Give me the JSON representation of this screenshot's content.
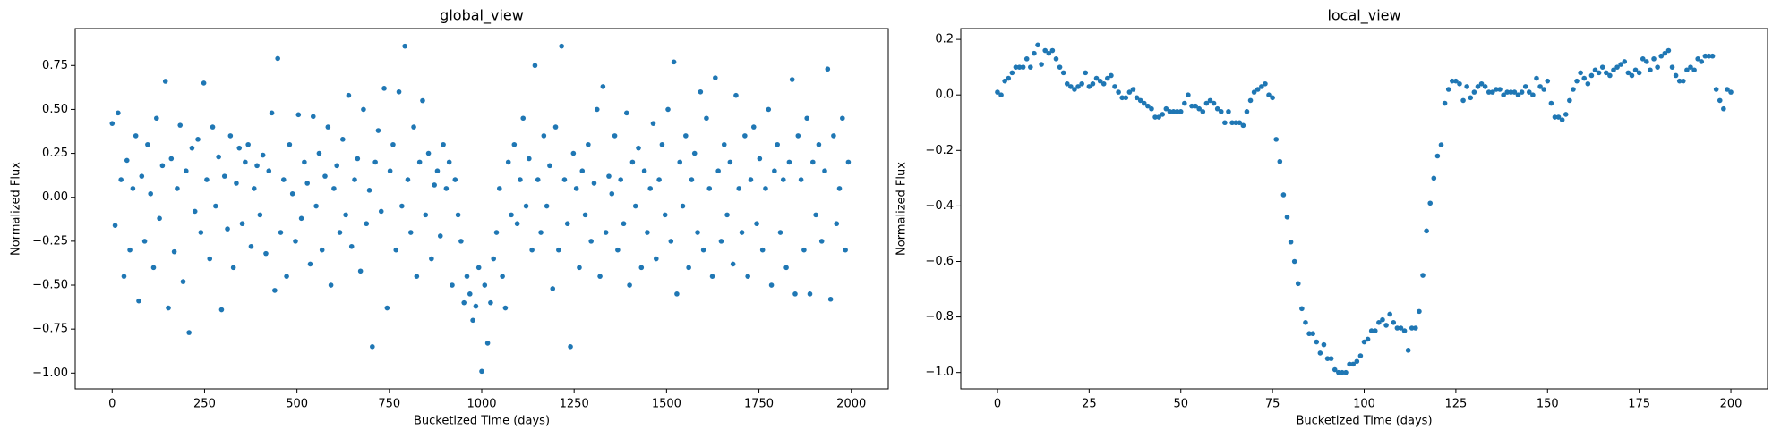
{
  "chart_data": [
    {
      "type": "scatter",
      "title": "global_view",
      "x_label": "Bucketized Time (days)",
      "y_label": "Normalized Flux",
      "color": "#1f77b4",
      "xlim": [
        -100,
        2100
      ],
      "ylim": [
        -1.09,
        0.96
      ],
      "xticks": [
        0,
        250,
        500,
        750,
        1000,
        1250,
        1500,
        1750,
        2000
      ],
      "yticks": [
        {
          "value": -1,
          "label": "−1.00"
        },
        {
          "value": -0.75,
          "label": "−0.75"
        },
        {
          "value": -0.5,
          "label": "−0.50"
        },
        {
          "value": -0.25,
          "label": "−0.25"
        },
        {
          "value": 0,
          "label": "0.00"
        },
        {
          "value": 0.25,
          "label": "0.25"
        },
        {
          "value": 0.5,
          "label": "0.50"
        },
        {
          "value": 0.75,
          "label": "0.75"
        }
      ],
      "x": [
        0,
        8,
        16,
        24,
        32,
        40,
        48,
        56,
        64,
        72,
        80,
        88,
        96,
        104,
        112,
        120,
        128,
        136,
        144,
        152,
        160,
        168,
        176,
        184,
        192,
        200,
        208,
        216,
        224,
        232,
        240,
        248,
        256,
        264,
        272,
        280,
        288,
        296,
        304,
        312,
        320,
        328,
        336,
        344,
        352,
        360,
        368,
        376,
        384,
        392,
        400,
        408,
        416,
        424,
        432,
        440,
        448,
        456,
        464,
        472,
        480,
        488,
        496,
        504,
        512,
        520,
        528,
        536,
        544,
        552,
        560,
        568,
        576,
        584,
        592,
        600,
        608,
        616,
        624,
        632,
        640,
        648,
        656,
        664,
        672,
        680,
        688,
        696,
        704,
        712,
        720,
        728,
        736,
        744,
        752,
        760,
        768,
        776,
        784,
        792,
        800,
        808,
        816,
        824,
        832,
        840,
        848,
        856,
        864,
        872,
        880,
        888,
        896,
        904,
        912,
        920,
        928,
        936,
        944,
        952,
        960,
        968,
        976,
        984,
        992,
        1000,
        1008,
        1016,
        1024,
        1032,
        1040,
        1048,
        1056,
        1064,
        1072,
        1080,
        1088,
        1096,
        1104,
        1112,
        1120,
        1128,
        1136,
        1144,
        1152,
        1160,
        1168,
        1176,
        1184,
        1192,
        1200,
        1208,
        1216,
        1224,
        1232,
        1240,
        1248,
        1256,
        1264,
        1272,
        1280,
        1288,
        1296,
        1304,
        1312,
        1320,
        1328,
        1336,
        1344,
        1352,
        1360,
        1368,
        1376,
        1384,
        1392,
        1400,
        1408,
        1416,
        1424,
        1432,
        1440,
        1448,
        1456,
        1464,
        1472,
        1480,
        1488,
        1496,
        1504,
        1512,
        1520,
        1528,
        1536,
        1544,
        1552,
        1560,
        1568,
        1576,
        1584,
        1592,
        1600,
        1608,
        1616,
        1624,
        1632,
        1640,
        1648,
        1656,
        1664,
        1672,
        1680,
        1688,
        1696,
        1704,
        1712,
        1720,
        1728,
        1736,
        1744,
        1752,
        1760,
        1768,
        1776,
        1784,
        1792,
        1800,
        1808,
        1816,
        1824,
        1832,
        1840,
        1848,
        1856,
        1864,
        1872,
        1880,
        1888,
        1896,
        1904,
        1912,
        1920,
        1928,
        1936,
        1944,
        1952,
        1960,
        1968,
        1976,
        1984,
        1992
      ],
      "values": [
        0.42,
        -0.16,
        0.48,
        0.1,
        -0.45,
        0.21,
        -0.3,
        0.05,
        0.35,
        -0.59,
        0.12,
        -0.25,
        0.3,
        0.02,
        -0.4,
        0.45,
        -0.12,
        0.18,
        0.66,
        -0.63,
        0.22,
        -0.31,
        0.05,
        0.41,
        -0.48,
        0.15,
        -0.77,
        0.28,
        -0.08,
        0.33,
        -0.2,
        0.65,
        0.1,
        -0.35,
        0.4,
        -0.05,
        0.23,
        -0.64,
        0.12,
        -0.18,
        0.35,
        -0.4,
        0.08,
        0.28,
        -0.15,
        0.2,
        0.3,
        -0.28,
        0.05,
        0.18,
        -0.1,
        0.24,
        -0.32,
        0.15,
        0.48,
        -0.53,
        0.79,
        -0.2,
        0.1,
        -0.45,
        0.3,
        0.02,
        -0.25,
        0.47,
        -0.12,
        0.2,
        0.08,
        -0.38,
        0.46,
        -0.05,
        0.25,
        -0.3,
        0.12,
        0.4,
        -0.5,
        0.05,
        0.18,
        -0.2,
        0.33,
        -0.1,
        0.58,
        -0.28,
        0.1,
        0.22,
        -0.42,
        0.5,
        -0.15,
        0.04,
        -0.85,
        0.2,
        0.38,
        -0.08,
        0.62,
        -0.63,
        0.15,
        0.3,
        -0.3,
        0.6,
        -0.05,
        0.86,
        0.1,
        -0.2,
        0.4,
        -0.45,
        0.2,
        0.55,
        -0.1,
        0.25,
        -0.35,
        0.07,
        0.15,
        -0.22,
        0.3,
        0.05,
        0.2,
        -0.5,
        0.1,
        -0.1,
        -0.25,
        -0.6,
        -0.45,
        -0.55,
        -0.7,
        -0.62,
        -0.4,
        -0.99,
        -0.5,
        -0.83,
        -0.6,
        -0.35,
        -0.2,
        0.05,
        -0.45,
        -0.63,
        0.2,
        -0.1,
        0.3,
        -0.15,
        0.1,
        0.45,
        -0.05,
        0.22,
        -0.3,
        0.75,
        0.1,
        -0.2,
        0.35,
        -0.05,
        0.18,
        -0.52,
        0.4,
        -0.3,
        0.86,
        0.1,
        -0.15,
        -0.85,
        0.25,
        0.05,
        -0.4,
        0.15,
        -0.1,
        0.3,
        -0.25,
        0.08,
        0.5,
        -0.45,
        0.63,
        -0.2,
        0.12,
        0.02,
        0.35,
        -0.3,
        0.1,
        -0.15,
        0.48,
        -0.5,
        0.2,
        -0.05,
        0.28,
        -0.4,
        0.15,
        -0.2,
        0.05,
        0.42,
        -0.35,
        0.1,
        0.3,
        -0.1,
        0.5,
        -0.25,
        0.77,
        -0.55,
        0.2,
        -0.05,
        0.35,
        -0.4,
        0.1,
        0.25,
        -0.2,
        0.6,
        -0.3,
        0.45,
        0.05,
        -0.45,
        0.68,
        0.15,
        -0.25,
        0.3,
        -0.1,
        0.2,
        -0.38,
        0.58,
        0.05,
        -0.2,
        0.35,
        -0.45,
        0.1,
        0.4,
        -0.15,
        0.22,
        -0.3,
        0.05,
        0.5,
        -0.5,
        0.15,
        0.3,
        -0.2,
        0.1,
        -0.4,
        0.2,
        0.67,
        -0.55,
        0.35,
        0.1,
        -0.3,
        0.45,
        -0.55,
        0.2,
        -0.1,
        0.3,
        -0.25,
        0.15,
        0.73,
        -0.58,
        0.35,
        -0.15,
        0.05,
        0.45,
        -0.3,
        0.2
      ]
    },
    {
      "type": "scatter",
      "title": "local_view",
      "x_label": "Bucketized Time (days)",
      "y_label": "Normalized Flux",
      "color": "#1f77b4",
      "xlim": [
        -10,
        210
      ],
      "ylim": [
        -1.059,
        0.239
      ],
      "xticks": [
        0,
        25,
        50,
        75,
        100,
        125,
        150,
        175,
        200
      ],
      "yticks": [
        {
          "value": -1,
          "label": "−1.0"
        },
        {
          "value": -0.8,
          "label": "−0.8"
        },
        {
          "value": -0.6,
          "label": "−0.6"
        },
        {
          "value": -0.4,
          "label": "−0.4"
        },
        {
          "value": -0.2,
          "label": "−0.2"
        },
        {
          "value": 0,
          "label": "0.0"
        },
        {
          "value": 0.2,
          "label": "0.2"
        }
      ],
      "x": [
        0,
        1,
        2,
        3,
        4,
        5,
        6,
        7,
        8,
        9,
        10,
        11,
        12,
        13,
        14,
        15,
        16,
        17,
        18,
        19,
        20,
        21,
        22,
        23,
        24,
        25,
        26,
        27,
        28,
        29,
        30,
        31,
        32,
        33,
        34,
        35,
        36,
        37,
        38,
        39,
        40,
        41,
        42,
        43,
        44,
        45,
        46,
        47,
        48,
        49,
        50,
        51,
        52,
        53,
        54,
        55,
        56,
        57,
        58,
        59,
        60,
        61,
        62,
        63,
        64,
        65,
        66,
        67,
        68,
        69,
        70,
        71,
        72,
        73,
        74,
        75,
        76,
        77,
        78,
        79,
        80,
        81,
        82,
        83,
        84,
        85,
        86,
        87,
        88,
        89,
        90,
        91,
        92,
        93,
        94,
        95,
        96,
        97,
        98,
        99,
        100,
        101,
        102,
        103,
        104,
        105,
        106,
        107,
        108,
        109,
        110,
        111,
        112,
        113,
        114,
        115,
        116,
        117,
        118,
        119,
        120,
        121,
        122,
        123,
        124,
        125,
        126,
        127,
        128,
        129,
        130,
        131,
        132,
        133,
        134,
        135,
        136,
        137,
        138,
        139,
        140,
        141,
        142,
        143,
        144,
        145,
        146,
        147,
        148,
        149,
        150,
        151,
        152,
        153,
        154,
        155,
        156,
        157,
        158,
        159,
        160,
        161,
        162,
        163,
        164,
        165,
        166,
        167,
        168,
        169,
        170,
        171,
        172,
        173,
        174,
        175,
        176,
        177,
        178,
        179,
        180,
        181,
        182,
        183,
        184,
        185,
        186,
        187,
        188,
        189,
        190,
        191,
        192,
        193,
        194,
        195,
        196,
        197,
        198,
        199,
        200
      ],
      "values": [
        0.01,
        0.0,
        0.05,
        0.06,
        0.08,
        0.1,
        0.1,
        0.1,
        0.13,
        0.1,
        0.15,
        0.18,
        0.11,
        0.16,
        0.15,
        0.16,
        0.13,
        0.1,
        0.08,
        0.04,
        0.03,
        0.02,
        0.03,
        0.04,
        0.08,
        0.03,
        0.04,
        0.06,
        0.05,
        0.04,
        0.06,
        0.07,
        0.03,
        0.01,
        -0.01,
        -0.01,
        0.01,
        0.02,
        -0.01,
        -0.02,
        -0.03,
        -0.04,
        -0.05,
        -0.08,
        -0.08,
        -0.07,
        -0.05,
        -0.06,
        -0.06,
        -0.06,
        -0.06,
        -0.03,
        0.0,
        -0.04,
        -0.04,
        -0.05,
        -0.06,
        -0.03,
        -0.02,
        -0.03,
        -0.05,
        -0.06,
        -0.1,
        -0.06,
        -0.1,
        -0.1,
        -0.1,
        -0.11,
        -0.06,
        -0.02,
        0.01,
        0.02,
        0.03,
        0.04,
        0.0,
        -0.01,
        -0.16,
        -0.24,
        -0.36,
        -0.44,
        -0.53,
        -0.6,
        -0.68,
        -0.77,
        -0.82,
        -0.86,
        -0.86,
        -0.89,
        -0.93,
        -0.9,
        -0.95,
        -0.95,
        -0.99,
        -1.0,
        -1.0,
        -1.0,
        -0.97,
        -0.97,
        -0.96,
        -0.94,
        -0.89,
        -0.88,
        -0.85,
        -0.85,
        -0.82,
        -0.81,
        -0.83,
        -0.79,
        -0.82,
        -0.84,
        -0.84,
        -0.85,
        -0.92,
        -0.84,
        -0.84,
        -0.78,
        -0.65,
        -0.49,
        -0.39,
        -0.3,
        -0.22,
        -0.18,
        -0.03,
        0.02,
        0.05,
        0.05,
        0.04,
        -0.02,
        0.03,
        -0.01,
        0.01,
        0.03,
        0.04,
        0.03,
        0.01,
        0.01,
        0.02,
        0.02,
        0.0,
        0.01,
        0.01,
        0.01,
        0.0,
        0.01,
        0.03,
        0.01,
        0.0,
        0.06,
        0.03,
        0.02,
        0.05,
        -0.03,
        -0.08,
        -0.08,
        -0.09,
        -0.07,
        -0.02,
        0.02,
        0.05,
        0.08,
        0.06,
        0.04,
        0.07,
        0.09,
        0.08,
        0.1,
        0.08,
        0.07,
        0.09,
        0.1,
        0.11,
        0.12,
        0.08,
        0.07,
        0.09,
        0.08,
        0.13,
        0.12,
        0.09,
        0.13,
        0.1,
        0.14,
        0.15,
        0.16,
        0.1,
        0.07,
        0.05,
        0.05,
        0.09,
        0.1,
        0.09,
        0.13,
        0.12,
        0.14,
        0.14,
        0.14,
        0.02,
        -0.02,
        -0.05,
        0.02,
        0.01
      ]
    }
  ]
}
